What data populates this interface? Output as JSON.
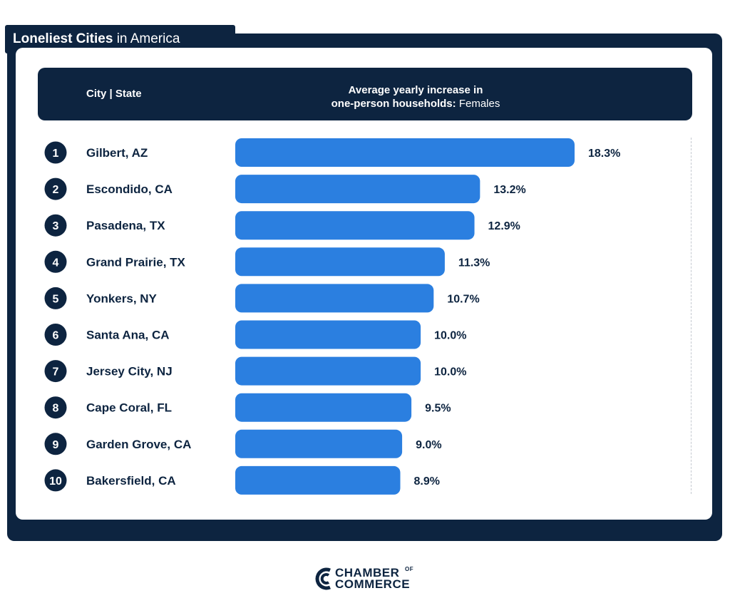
{
  "title": {
    "bold": "Loneliest Cities",
    "rest": " in America"
  },
  "header": {
    "city_label": "City | State",
    "metric_line1": "Average yearly increase in",
    "metric_line2_bold": "one-person households:",
    "metric_line2_light": " Females"
  },
  "colors": {
    "navy": "#0d2440",
    "bar": "#2b7fe0",
    "white": "#ffffff"
  },
  "chart_data": {
    "type": "bar",
    "orientation": "horizontal",
    "title": "Loneliest Cities in America",
    "categories": [
      "Gilbert, AZ",
      "Escondido, CA",
      "Pasadena, TX",
      "Grand Prairie, TX",
      "Yonkers, NY",
      "Santa Ana, CA",
      "Jersey City, NJ",
      "Cape Coral, FL",
      "Garden Grove, CA",
      "Bakersfield, CA"
    ],
    "ranks": [
      "1",
      "2",
      "3",
      "4",
      "5",
      "6",
      "7",
      "8",
      "9",
      "10"
    ],
    "values": [
      18.3,
      13.2,
      12.9,
      11.3,
      10.7,
      10.0,
      10.0,
      9.5,
      9.0,
      8.9
    ],
    "value_labels": [
      "18.3%",
      "13.2%",
      "12.9%",
      "11.3%",
      "10.7%",
      "10.0%",
      "10.0%",
      "9.5%",
      "9.0%",
      "8.9%"
    ],
    "xlim": [
      0,
      18.3
    ],
    "grid": false,
    "legend": "none"
  },
  "logo": {
    "line1": "CHAMBER",
    "of": "OF",
    "line2": "COMMERCE"
  }
}
